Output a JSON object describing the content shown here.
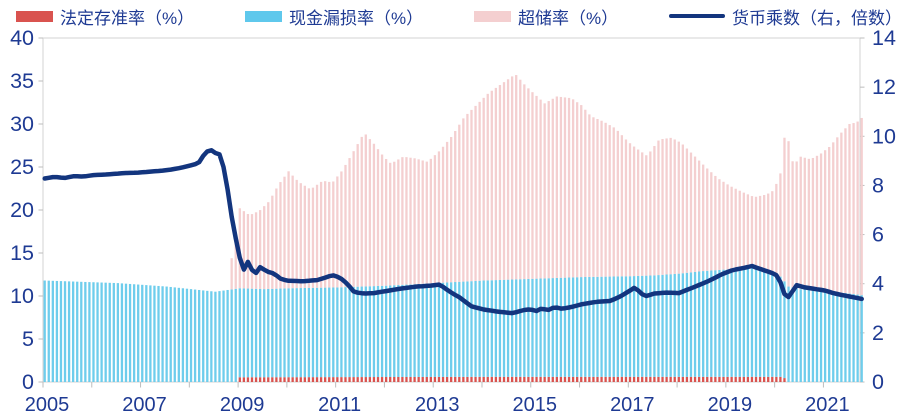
{
  "chart_data": {
    "type": "combo-bar-line",
    "title": "",
    "legend": [
      {
        "label": "法定存准率（%）",
        "swatch": "bar",
        "color": "#d9534f"
      },
      {
        "label": "现金漏损率（%）",
        "swatch": "bar",
        "color": "#5fc8ec"
      },
      {
        "label": "超储率（%）",
        "swatch": "bar",
        "color": "#f4cfd0"
      },
      {
        "label": "货币乘数（右，倍数）",
        "swatch": "line",
        "color": "#13357e"
      }
    ],
    "left_axis": {
      "min": 0,
      "max": 40,
      "ticks": [
        0,
        5,
        10,
        15,
        20,
        25,
        30,
        35,
        40
      ]
    },
    "right_axis": {
      "min": 0,
      "max": 14,
      "ticks": [
        0,
        2,
        4,
        6,
        8,
        10,
        12,
        14
      ]
    },
    "x_axis": {
      "start": 2005,
      "end": 2021.75,
      "sampling": "monthly",
      "tick_years": [
        2005,
        2006,
        2007,
        2008,
        2009,
        2010,
        2011,
        2012,
        2013,
        2014,
        2015,
        2016,
        2017,
        2018,
        2019,
        2020,
        2021
      ],
      "labeled_years": [
        2005,
        2007,
        2009,
        2011,
        2013,
        2015,
        2017,
        2019,
        2021
      ]
    },
    "series": {
      "required_reserve": {
        "name": "法定存准率（%）",
        "axis": "left",
        "render": "stacked-bar-bottom",
        "color": "#d9534f",
        "keypoints": [
          [
            2005,
            0
          ],
          [
            2008.95,
            0
          ],
          [
            2009.0,
            0.55
          ],
          [
            2014.0,
            0.6
          ],
          [
            2020.15,
            0.6
          ],
          [
            2020.22,
            0
          ],
          [
            2021.75,
            0
          ]
        ]
      },
      "cash_leakage": {
        "name": "现金漏损率（%）",
        "axis": "left",
        "render": "stacked-bar",
        "color": "#6ecdec",
        "note": "values are cumulative stack tops (required_reserve + cash_leakage)",
        "keypoints": [
          [
            2005.0,
            11.8
          ],
          [
            2005.5,
            11.7
          ],
          [
            2006.0,
            11.6
          ],
          [
            2006.5,
            11.5
          ],
          [
            2007.0,
            11.3
          ],
          [
            2007.5,
            11.1
          ],
          [
            2008.0,
            10.8
          ],
          [
            2008.5,
            10.5
          ],
          [
            2009.0,
            10.9
          ],
          [
            2009.5,
            10.8
          ],
          [
            2010.0,
            10.9
          ],
          [
            2011.0,
            11.0
          ],
          [
            2012.0,
            11.2
          ],
          [
            2013.0,
            11.5
          ],
          [
            2014.0,
            11.8
          ],
          [
            2015.0,
            12.0
          ],
          [
            2016.0,
            12.2
          ],
          [
            2017.0,
            12.3
          ],
          [
            2017.5,
            12.4
          ],
          [
            2018.0,
            12.6
          ],
          [
            2018.5,
            12.9
          ],
          [
            2019.0,
            13.1
          ],
          [
            2019.5,
            13.2
          ],
          [
            2019.9,
            12.9
          ],
          [
            2020.1,
            12.2
          ],
          [
            2020.25,
            11.1
          ],
          [
            2020.5,
            10.8
          ],
          [
            2021.0,
            10.6
          ],
          [
            2021.5,
            10.3
          ],
          [
            2021.75,
            10.1
          ]
        ]
      },
      "excess_reserve": {
        "name": "超储率（%）",
        "axis": "left",
        "render": "stacked-bar-top",
        "color": "#f4cfd0",
        "note": "values are cumulative stack tops (total bar height); series is zero before 2008.79",
        "keypoints": [
          [
            2008.79,
            12.5
          ],
          [
            2008.87,
            16.0
          ],
          [
            2008.95,
            18.5
          ],
          [
            2009.0,
            20.2
          ],
          [
            2009.2,
            19.4
          ],
          [
            2009.4,
            19.9
          ],
          [
            2009.6,
            21.0
          ],
          [
            2009.8,
            23.0
          ],
          [
            2010.0,
            24.5
          ],
          [
            2010.2,
            23.3
          ],
          [
            2010.45,
            22.4
          ],
          [
            2010.7,
            23.4
          ],
          [
            2010.9,
            23.2
          ],
          [
            2011.1,
            24.6
          ],
          [
            2011.35,
            27.0
          ],
          [
            2011.55,
            29.0
          ],
          [
            2011.75,
            27.7
          ],
          [
            2011.95,
            26.2
          ],
          [
            2012.1,
            25.4
          ],
          [
            2012.35,
            26.2
          ],
          [
            2012.6,
            26.0
          ],
          [
            2012.85,
            25.6
          ],
          [
            2013.1,
            26.9
          ],
          [
            2013.35,
            28.6
          ],
          [
            2013.6,
            30.8
          ],
          [
            2013.85,
            32.2
          ],
          [
            2014.1,
            33.6
          ],
          [
            2014.4,
            34.8
          ],
          [
            2014.65,
            35.8
          ],
          [
            2014.85,
            34.5
          ],
          [
            2015.0,
            33.7
          ],
          [
            2015.25,
            32.4
          ],
          [
            2015.5,
            33.2
          ],
          [
            2015.8,
            33.0
          ],
          [
            2016.0,
            32.2
          ],
          [
            2016.2,
            30.9
          ],
          [
            2016.45,
            30.3
          ],
          [
            2016.7,
            29.5
          ],
          [
            2016.95,
            28.0
          ],
          [
            2017.1,
            27.3
          ],
          [
            2017.35,
            26.3
          ],
          [
            2017.6,
            28.2
          ],
          [
            2017.85,
            28.4
          ],
          [
            2018.05,
            27.8
          ],
          [
            2018.3,
            26.4
          ],
          [
            2018.55,
            25.0
          ],
          [
            2018.8,
            23.7
          ],
          [
            2019.05,
            22.8
          ],
          [
            2019.3,
            22.1
          ],
          [
            2019.55,
            21.5
          ],
          [
            2019.8,
            21.8
          ],
          [
            2019.95,
            22.3
          ],
          [
            2020.1,
            24.5
          ],
          [
            2020.17,
            28.6
          ],
          [
            2020.25,
            28.0
          ],
          [
            2020.35,
            25.2
          ],
          [
            2020.5,
            26.2
          ],
          [
            2020.7,
            25.9
          ],
          [
            2020.9,
            26.5
          ],
          [
            2021.1,
            27.4
          ],
          [
            2021.3,
            28.8
          ],
          [
            2021.5,
            30.0
          ],
          [
            2021.65,
            30.2
          ],
          [
            2021.75,
            30.7
          ]
        ]
      },
      "money_multiplier": {
        "name": "货币乘数（右，倍数）",
        "axis": "right",
        "render": "line",
        "color": "#13357e",
        "keypoints": [
          [
            2005.0,
            8.28
          ],
          [
            2005.2,
            8.35
          ],
          [
            2005.4,
            8.3
          ],
          [
            2005.6,
            8.38
          ],
          [
            2005.8,
            8.36
          ],
          [
            2006.0,
            8.42
          ],
          [
            2006.3,
            8.45
          ],
          [
            2006.6,
            8.5
          ],
          [
            2006.9,
            8.52
          ],
          [
            2007.1,
            8.55
          ],
          [
            2007.4,
            8.6
          ],
          [
            2007.6,
            8.65
          ],
          [
            2007.8,
            8.72
          ],
          [
            2008.0,
            8.82
          ],
          [
            2008.15,
            8.9
          ],
          [
            2008.3,
            9.35
          ],
          [
            2008.4,
            9.45
          ],
          [
            2008.5,
            9.32
          ],
          [
            2008.6,
            9.25
          ],
          [
            2008.7,
            8.5
          ],
          [
            2008.85,
            6.5
          ],
          [
            2009.0,
            5.05
          ],
          [
            2009.08,
            4.56
          ],
          [
            2009.17,
            4.9
          ],
          [
            2009.3,
            4.35
          ],
          [
            2009.42,
            4.68
          ],
          [
            2009.55,
            4.5
          ],
          [
            2009.7,
            4.42
          ],
          [
            2009.85,
            4.18
          ],
          [
            2010.0,
            4.12
          ],
          [
            2010.3,
            4.1
          ],
          [
            2010.6,
            4.15
          ],
          [
            2010.9,
            4.35
          ],
          [
            2011.05,
            4.25
          ],
          [
            2011.2,
            4.0
          ],
          [
            2011.35,
            3.65
          ],
          [
            2011.55,
            3.6
          ],
          [
            2011.75,
            3.62
          ],
          [
            2012.0,
            3.7
          ],
          [
            2012.3,
            3.8
          ],
          [
            2012.6,
            3.88
          ],
          [
            2012.9,
            3.92
          ],
          [
            2013.1,
            3.97
          ],
          [
            2013.3,
            3.68
          ],
          [
            2013.5,
            3.45
          ],
          [
            2013.75,
            3.08
          ],
          [
            2014.0,
            2.95
          ],
          [
            2014.3,
            2.86
          ],
          [
            2014.6,
            2.8
          ],
          [
            2014.8,
            2.92
          ],
          [
            2014.95,
            2.96
          ],
          [
            2015.1,
            2.88
          ],
          [
            2015.2,
            3.02
          ],
          [
            2015.3,
            2.9
          ],
          [
            2015.45,
            3.05
          ],
          [
            2015.6,
            2.98
          ],
          [
            2015.8,
            3.05
          ],
          [
            2016.0,
            3.16
          ],
          [
            2016.3,
            3.26
          ],
          [
            2016.6,
            3.3
          ],
          [
            2016.8,
            3.48
          ],
          [
            2017.0,
            3.72
          ],
          [
            2017.1,
            3.85
          ],
          [
            2017.3,
            3.48
          ],
          [
            2017.5,
            3.6
          ],
          [
            2017.75,
            3.64
          ],
          [
            2018.0,
            3.62
          ],
          [
            2018.3,
            3.85
          ],
          [
            2018.6,
            4.1
          ],
          [
            2018.9,
            4.4
          ],
          [
            2019.1,
            4.55
          ],
          [
            2019.35,
            4.65
          ],
          [
            2019.5,
            4.72
          ],
          [
            2019.7,
            4.58
          ],
          [
            2019.9,
            4.45
          ],
          [
            2020.05,
            4.3
          ],
          [
            2020.15,
            3.6
          ],
          [
            2020.25,
            3.46
          ],
          [
            2020.42,
            3.95
          ],
          [
            2020.55,
            3.86
          ],
          [
            2020.75,
            3.8
          ],
          [
            2021.0,
            3.72
          ],
          [
            2021.2,
            3.6
          ],
          [
            2021.4,
            3.52
          ],
          [
            2021.6,
            3.44
          ],
          [
            2021.75,
            3.38
          ]
        ]
      }
    },
    "grid": "none",
    "legend_position": "top",
    "axis_label_color": "#1e3a93",
    "frame_color": "#d3d3d3"
  }
}
